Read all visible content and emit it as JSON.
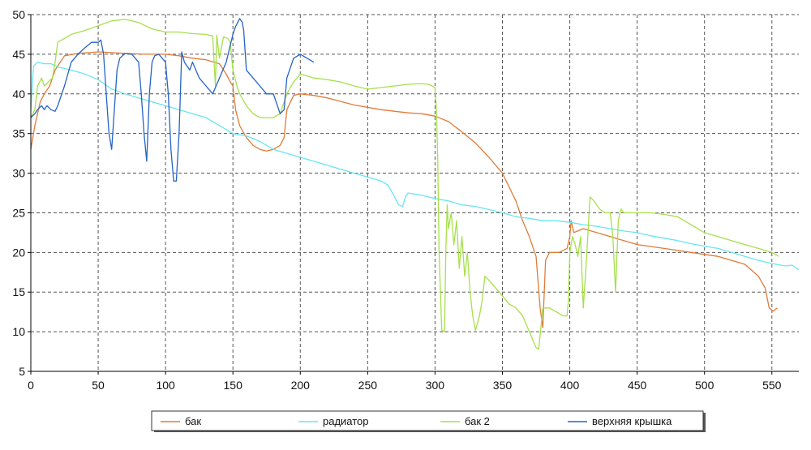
{
  "chart_data": {
    "type": "line",
    "title": "",
    "xlabel": "",
    "ylabel": "",
    "xlim": [
      0,
      570
    ],
    "ylim": [
      5,
      50
    ],
    "x_ticks": [
      0,
      50,
      100,
      150,
      200,
      250,
      300,
      350,
      400,
      450,
      500,
      550
    ],
    "y_ticks": [
      5,
      10,
      15,
      20,
      25,
      30,
      35,
      40,
      45,
      50
    ],
    "grid": true,
    "legend_position": "bottom",
    "series": [
      {
        "name": "бак",
        "color": "#e07b39",
        "points": [
          [
            0,
            33
          ],
          [
            3,
            36
          ],
          [
            7,
            39
          ],
          [
            10,
            40
          ],
          [
            14,
            41
          ],
          [
            18,
            43
          ],
          [
            25,
            44.8
          ],
          [
            35,
            45.1
          ],
          [
            50,
            45.3
          ],
          [
            60,
            45.2
          ],
          [
            70,
            45.1
          ],
          [
            85,
            45.0
          ],
          [
            100,
            45.0
          ],
          [
            110,
            44.8
          ],
          [
            120,
            44.5
          ],
          [
            130,
            44.3
          ],
          [
            140,
            43.8
          ],
          [
            145,
            42.5
          ],
          [
            148,
            41.5
          ],
          [
            150,
            41
          ],
          [
            152,
            38
          ],
          [
            155,
            36
          ],
          [
            160,
            34.5
          ],
          [
            165,
            33.5
          ],
          [
            170,
            33
          ],
          [
            175,
            32.8
          ],
          [
            180,
            33
          ],
          [
            185,
            33.5
          ],
          [
            188,
            34.5
          ],
          [
            190,
            38
          ],
          [
            195,
            39.8
          ],
          [
            200,
            40
          ],
          [
            210,
            39.8
          ],
          [
            220,
            39.5
          ],
          [
            240,
            38.6
          ],
          [
            260,
            38.0
          ],
          [
            280,
            37.6
          ],
          [
            290,
            37.5
          ],
          [
            300,
            37.2
          ],
          [
            310,
            36.5
          ],
          [
            320,
            35.2
          ],
          [
            330,
            33.8
          ],
          [
            340,
            32
          ],
          [
            350,
            30
          ],
          [
            360,
            26.5
          ],
          [
            365,
            24
          ],
          [
            370,
            22
          ],
          [
            375,
            19.5
          ],
          [
            378,
            13
          ],
          [
            380,
            10.5
          ],
          [
            382,
            19
          ],
          [
            385,
            20
          ],
          [
            392,
            20
          ],
          [
            398,
            20.5
          ],
          [
            400,
            22
          ],
          [
            401,
            24
          ],
          [
            403,
            22.5
          ],
          [
            410,
            23
          ],
          [
            420,
            22.5
          ],
          [
            430,
            22
          ],
          [
            440,
            21.5
          ],
          [
            450,
            21
          ],
          [
            470,
            20.5
          ],
          [
            490,
            20
          ],
          [
            510,
            19.5
          ],
          [
            530,
            18.5
          ],
          [
            540,
            17
          ],
          [
            545,
            15.5
          ],
          [
            548,
            13
          ],
          [
            551,
            12.6
          ],
          [
            554,
            13
          ]
        ]
      },
      {
        "name": "радиатор",
        "color": "#66e6f2",
        "points": [
          [
            0,
            38
          ],
          [
            2,
            43.5
          ],
          [
            5,
            44
          ],
          [
            10,
            43.8
          ],
          [
            15,
            43.8
          ],
          [
            20,
            43.4
          ],
          [
            30,
            43
          ],
          [
            40,
            42.5
          ],
          [
            50,
            41.8
          ],
          [
            60,
            40.6
          ],
          [
            70,
            40
          ],
          [
            80,
            39.5
          ],
          [
            90,
            39
          ],
          [
            100,
            38.5
          ],
          [
            110,
            38
          ],
          [
            120,
            37.5
          ],
          [
            130,
            37
          ],
          [
            140,
            36
          ],
          [
            150,
            35
          ],
          [
            160,
            34.7
          ],
          [
            170,
            34
          ],
          [
            180,
            33
          ],
          [
            190,
            32.5
          ],
          [
            200,
            32
          ],
          [
            210,
            31.5
          ],
          [
            220,
            31
          ],
          [
            230,
            30.5
          ],
          [
            240,
            30
          ],
          [
            250,
            29.5
          ],
          [
            260,
            29
          ],
          [
            265,
            28.5
          ],
          [
            270,
            27
          ],
          [
            273,
            26
          ],
          [
            276,
            25.8
          ],
          [
            278,
            27
          ],
          [
            280,
            27.5
          ],
          [
            290,
            27.2
          ],
          [
            300,
            26.8
          ],
          [
            310,
            26.5
          ],
          [
            320,
            26
          ],
          [
            330,
            25.8
          ],
          [
            340,
            25.4
          ],
          [
            350,
            25
          ],
          [
            360,
            24.5
          ],
          [
            370,
            24.3
          ],
          [
            380,
            24
          ],
          [
            390,
            24
          ],
          [
            400,
            23.8
          ],
          [
            410,
            23.5
          ],
          [
            420,
            23.3
          ],
          [
            430,
            23
          ],
          [
            440,
            22.7
          ],
          [
            450,
            22.5
          ],
          [
            460,
            22.1
          ],
          [
            470,
            21.8
          ],
          [
            480,
            21.5
          ],
          [
            490,
            21.1
          ],
          [
            500,
            20.8
          ],
          [
            510,
            20.5
          ],
          [
            520,
            20
          ],
          [
            530,
            19.5
          ],
          [
            540,
            19
          ],
          [
            550,
            18.6
          ],
          [
            560,
            18.3
          ],
          [
            565,
            18.4
          ],
          [
            570,
            17.8
          ]
        ]
      },
      {
        "name": "бак 2",
        "color": "#a6e04a",
        "points": [
          [
            0,
            37
          ],
          [
            3,
            38
          ],
          [
            5,
            41
          ],
          [
            8,
            42
          ],
          [
            10,
            41
          ],
          [
            13,
            41.5
          ],
          [
            16,
            42
          ],
          [
            18,
            44
          ],
          [
            20,
            46.5
          ],
          [
            25,
            47
          ],
          [
            30,
            47.5
          ],
          [
            40,
            48
          ],
          [
            50,
            48.6
          ],
          [
            60,
            49.2
          ],
          [
            70,
            49.4
          ],
          [
            80,
            49
          ],
          [
            90,
            48.2
          ],
          [
            100,
            47.8
          ],
          [
            110,
            47.8
          ],
          [
            120,
            47.6
          ],
          [
            130,
            47.5
          ],
          [
            135,
            47.3
          ],
          [
            137,
            41
          ],
          [
            138,
            47.4
          ],
          [
            140,
            44.5
          ],
          [
            143,
            47.2
          ],
          [
            146,
            47
          ],
          [
            148,
            46.5
          ],
          [
            150,
            43
          ],
          [
            153,
            41
          ],
          [
            155,
            40
          ],
          [
            160,
            38.5
          ],
          [
            165,
            37.5
          ],
          [
            170,
            37
          ],
          [
            175,
            37
          ],
          [
            180,
            37
          ],
          [
            185,
            37.5
          ],
          [
            190,
            40
          ],
          [
            195,
            41.5
          ],
          [
            200,
            42.5
          ],
          [
            210,
            42
          ],
          [
            220,
            41.8
          ],
          [
            230,
            41.5
          ],
          [
            240,
            41
          ],
          [
            250,
            40.6
          ],
          [
            260,
            40.8
          ],
          [
            270,
            41
          ],
          [
            280,
            41.2
          ],
          [
            290,
            41.3
          ],
          [
            295,
            41.2
          ],
          [
            298,
            41
          ],
          [
            300,
            40.8
          ],
          [
            301,
            38
          ],
          [
            302,
            32
          ],
          [
            303,
            20
          ],
          [
            305,
            10.2
          ],
          [
            307,
            10
          ],
          [
            308,
            20
          ],
          [
            309,
            26
          ],
          [
            310,
            23
          ],
          [
            312,
            25
          ],
          [
            314,
            21
          ],
          [
            316,
            24
          ],
          [
            318,
            18
          ],
          [
            320,
            22
          ],
          [
            322,
            17
          ],
          [
            324,
            20
          ],
          [
            326,
            15
          ],
          [
            328,
            12
          ],
          [
            330,
            10.2
          ],
          [
            333,
            12
          ],
          [
            335,
            14
          ],
          [
            337,
            17
          ],
          [
            340,
            16.5
          ],
          [
            345,
            15.5
          ],
          [
            350,
            14.5
          ],
          [
            355,
            13.5
          ],
          [
            360,
            13
          ],
          [
            365,
            12
          ],
          [
            370,
            10
          ],
          [
            375,
            8
          ],
          [
            377,
            7.8
          ],
          [
            380,
            13
          ],
          [
            385,
            13
          ],
          [
            390,
            12.5
          ],
          [
            395,
            12
          ],
          [
            398,
            12
          ],
          [
            399,
            14
          ],
          [
            400,
            20
          ],
          [
            402,
            22
          ],
          [
            404,
            21
          ],
          [
            406,
            19.5
          ],
          [
            408,
            22
          ],
          [
            410,
            13
          ],
          [
            412,
            18
          ],
          [
            415,
            27
          ],
          [
            418,
            26.5
          ],
          [
            422,
            25.5
          ],
          [
            426,
            25
          ],
          [
            430,
            25
          ],
          [
            432,
            22
          ],
          [
            434,
            15
          ],
          [
            436,
            24
          ],
          [
            438,
            25.5
          ],
          [
            440,
            25
          ],
          [
            450,
            25
          ],
          [
            460,
            25
          ],
          [
            470,
            24.8
          ],
          [
            480,
            24.5
          ],
          [
            490,
            23.5
          ],
          [
            500,
            22.5
          ],
          [
            510,
            22
          ],
          [
            520,
            21.5
          ],
          [
            530,
            21
          ],
          [
            540,
            20.5
          ],
          [
            550,
            20
          ],
          [
            555,
            19.5
          ]
        ]
      },
      {
        "name": "верхняя крышка",
        "color": "#2563c7",
        "points": [
          [
            0,
            37
          ],
          [
            3,
            37.5
          ],
          [
            5,
            38
          ],
          [
            8,
            38.5
          ],
          [
            10,
            38
          ],
          [
            12,
            38.5
          ],
          [
            15,
            38
          ],
          [
            18,
            37.8
          ],
          [
            20,
            38.5
          ],
          [
            25,
            41
          ],
          [
            30,
            44
          ],
          [
            35,
            45
          ],
          [
            40,
            45.8
          ],
          [
            45,
            46.5
          ],
          [
            50,
            46.5
          ],
          [
            52,
            46.8
          ],
          [
            54,
            45
          ],
          [
            56,
            40
          ],
          [
            58,
            35
          ],
          [
            60,
            33
          ],
          [
            62,
            38
          ],
          [
            64,
            43
          ],
          [
            66,
            44.5
          ],
          [
            70,
            45.1
          ],
          [
            75,
            45
          ],
          [
            80,
            44
          ],
          [
            82,
            40
          ],
          [
            84,
            35
          ],
          [
            86,
            31.5
          ],
          [
            88,
            40
          ],
          [
            90,
            44
          ],
          [
            92,
            44.8
          ],
          [
            95,
            45
          ],
          [
            100,
            44
          ],
          [
            102,
            40
          ],
          [
            104,
            33
          ],
          [
            106,
            29
          ],
          [
            108,
            29
          ],
          [
            110,
            35
          ],
          [
            112,
            45.3
          ],
          [
            114,
            44
          ],
          [
            118,
            43
          ],
          [
            120,
            44
          ],
          [
            125,
            42
          ],
          [
            130,
            41
          ],
          [
            135,
            40
          ],
          [
            140,
            42
          ],
          [
            145,
            44
          ],
          [
            150,
            47.5
          ],
          [
            152,
            48.5
          ],
          [
            155,
            49.5
          ],
          [
            157,
            49
          ],
          [
            158,
            48
          ],
          [
            160,
            43
          ],
          [
            165,
            42
          ],
          [
            170,
            41
          ],
          [
            175,
            40
          ],
          [
            180,
            40
          ],
          [
            185,
            37.5
          ],
          [
            188,
            38
          ],
          [
            190,
            42
          ],
          [
            195,
            44.5
          ],
          [
            200,
            45
          ],
          [
            205,
            44.5
          ],
          [
            210,
            44
          ]
        ]
      }
    ]
  }
}
